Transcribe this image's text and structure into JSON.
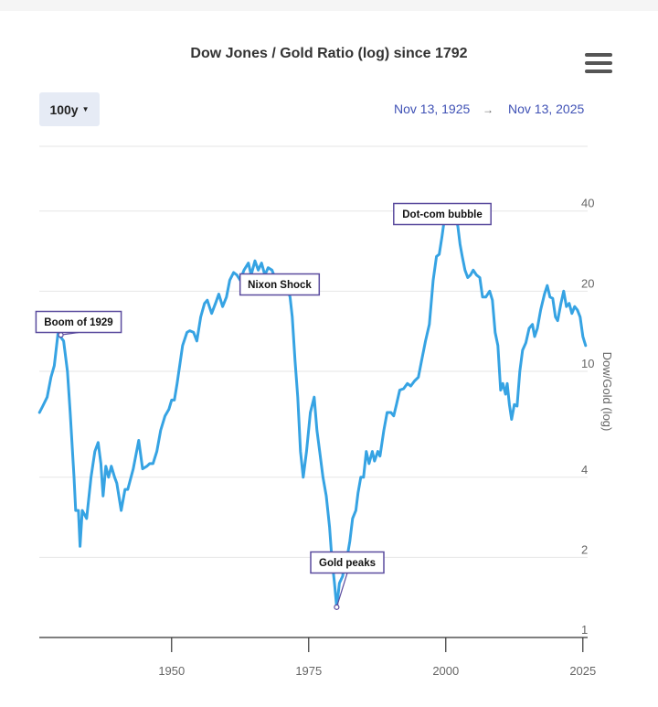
{
  "chart_data": {
    "type": "line",
    "title": "Dow Jones / Gold Ratio (log) since 1792",
    "ylabel": "Dow/Gold (log)",
    "xlabel": "",
    "yscale": "log",
    "ylim": [
      1,
      70
    ],
    "xlim": [
      1925.87,
      2025.87
    ],
    "x_ticks": [
      "1950",
      "1975",
      "2000",
      "2025"
    ],
    "y_ticks": [
      "1",
      "2",
      "4",
      "10",
      "20",
      "40"
    ],
    "grid": true,
    "legend": "none",
    "series": [
      {
        "color": "#36a3e3",
        "points": [
          [
            1925.9,
            7.0
          ],
          [
            1926.5,
            7.4
          ],
          [
            1927.3,
            8.0
          ],
          [
            1928.0,
            9.5
          ],
          [
            1928.6,
            10.5
          ],
          [
            1929.3,
            14.0
          ],
          [
            1929.7,
            13.5
          ],
          [
            1930.3,
            13.0
          ],
          [
            1931.0,
            10.0
          ],
          [
            1931.5,
            7.0
          ],
          [
            1932.2,
            4.0
          ],
          [
            1932.5,
            3.0
          ],
          [
            1933.0,
            3.0
          ],
          [
            1933.3,
            2.2
          ],
          [
            1933.7,
            3.0
          ],
          [
            1934.5,
            2.8
          ],
          [
            1935.3,
            4.0
          ],
          [
            1936.0,
            5.0
          ],
          [
            1936.6,
            5.4
          ],
          [
            1937.1,
            4.5
          ],
          [
            1937.5,
            3.4
          ],
          [
            1938.0,
            4.4
          ],
          [
            1938.5,
            4.0
          ],
          [
            1939.0,
            4.4
          ],
          [
            1939.6,
            4.0
          ],
          [
            1940.0,
            3.8
          ],
          [
            1940.8,
            3.0
          ],
          [
            1941.5,
            3.6
          ],
          [
            1942.0,
            3.6
          ],
          [
            1943.0,
            4.3
          ],
          [
            1944.0,
            5.5
          ],
          [
            1944.7,
            4.3
          ],
          [
            1945.5,
            4.4
          ],
          [
            1946.0,
            4.5
          ],
          [
            1946.6,
            4.5
          ],
          [
            1947.3,
            5.0
          ],
          [
            1948.0,
            6.0
          ],
          [
            1948.8,
            6.8
          ],
          [
            1949.5,
            7.2
          ],
          [
            1950.0,
            7.8
          ],
          [
            1950.5,
            7.8
          ],
          [
            1951.0,
            9.0
          ],
          [
            1952.0,
            12.5
          ],
          [
            1952.8,
            14.0
          ],
          [
            1953.3,
            14.2
          ],
          [
            1954.0,
            14.0
          ],
          [
            1954.6,
            13.0
          ],
          [
            1955.3,
            16.0
          ],
          [
            1956.0,
            18.0
          ],
          [
            1956.5,
            18.5
          ],
          [
            1957.3,
            16.5
          ],
          [
            1958.0,
            18.0
          ],
          [
            1958.6,
            19.5
          ],
          [
            1959.3,
            17.5
          ],
          [
            1960.0,
            19.0
          ],
          [
            1960.6,
            22.0
          ],
          [
            1961.3,
            23.5
          ],
          [
            1961.9,
            23.0
          ],
          [
            1962.5,
            22.0
          ],
          [
            1963.2,
            24.0
          ],
          [
            1964.0,
            25.5
          ],
          [
            1964.5,
            23.0
          ],
          [
            1965.2,
            26.0
          ],
          [
            1965.8,
            24.0
          ],
          [
            1966.4,
            25.5
          ],
          [
            1967.0,
            23.0
          ],
          [
            1967.6,
            24.5
          ],
          [
            1968.3,
            24.0
          ],
          [
            1969.0,
            22.0
          ],
          [
            1970.0,
            21.0
          ],
          [
            1970.5,
            20.0
          ],
          [
            1971.0,
            21.0
          ],
          [
            1971.6,
            19.0
          ],
          [
            1972.0,
            16.0
          ],
          [
            1972.5,
            11.0
          ],
          [
            1973.0,
            8.0
          ],
          [
            1973.5,
            5.0
          ],
          [
            1974.0,
            4.0
          ],
          [
            1974.6,
            5.0
          ],
          [
            1975.3,
            7.0
          ],
          [
            1976.0,
            8.0
          ],
          [
            1976.5,
            6.0
          ],
          [
            1977.0,
            5.0
          ],
          [
            1977.6,
            4.0
          ],
          [
            1978.2,
            3.4
          ],
          [
            1978.8,
            2.6
          ],
          [
            1979.2,
            2.0
          ],
          [
            1979.7,
            1.6
          ],
          [
            1980.1,
            1.3
          ],
          [
            1980.6,
            1.6
          ],
          [
            1981.2,
            1.7
          ],
          [
            1981.6,
            2.0
          ],
          [
            1982.0,
            2.0
          ],
          [
            1982.5,
            2.3
          ],
          [
            1983.0,
            2.8
          ],
          [
            1983.6,
            3.0
          ],
          [
            1984.0,
            3.5
          ],
          [
            1984.5,
            4.0
          ],
          [
            1985.0,
            4.0
          ],
          [
            1985.5,
            5.0
          ],
          [
            1986.0,
            4.5
          ],
          [
            1986.6,
            5.0
          ],
          [
            1987.0,
            4.6
          ],
          [
            1987.6,
            5.0
          ],
          [
            1988.0,
            4.8
          ],
          [
            1988.7,
            6.0
          ],
          [
            1989.3,
            7.0
          ],
          [
            1990.0,
            7.0
          ],
          [
            1990.5,
            6.8
          ],
          [
            1991.0,
            7.5
          ],
          [
            1991.6,
            8.5
          ],
          [
            1992.3,
            8.6
          ],
          [
            1993.0,
            9.0
          ],
          [
            1993.6,
            8.8
          ],
          [
            1994.3,
            9.2
          ],
          [
            1995.0,
            9.5
          ],
          [
            1995.6,
            11.0
          ],
          [
            1996.3,
            13.0
          ],
          [
            1997.0,
            15.0
          ],
          [
            1997.7,
            22.0
          ],
          [
            1998.3,
            27.0
          ],
          [
            1998.8,
            27.5
          ],
          [
            1999.3,
            32.0
          ],
          [
            1999.8,
            38.0
          ],
          [
            2000.5,
            37.5
          ],
          [
            2001.0,
            40.0
          ],
          [
            2001.6,
            40.5
          ],
          [
            2002.2,
            35.0
          ],
          [
            2002.6,
            30.0
          ],
          [
            2003.0,
            27.0
          ],
          [
            2003.5,
            24.0
          ],
          [
            2004.0,
            22.5
          ],
          [
            2004.5,
            23.0
          ],
          [
            2005.0,
            24.0
          ],
          [
            2005.6,
            23.0
          ],
          [
            2006.2,
            22.5
          ],
          [
            2006.7,
            19.0
          ],
          [
            2007.3,
            19.0
          ],
          [
            2008.0,
            20.0
          ],
          [
            2008.5,
            18.5
          ],
          [
            2009.0,
            14.0
          ],
          [
            2009.5,
            12.5
          ],
          [
            2010.0,
            8.5
          ],
          [
            2010.4,
            9.0
          ],
          [
            2010.9,
            8.2
          ],
          [
            2011.2,
            9.0
          ],
          [
            2011.6,
            7.5
          ],
          [
            2012.0,
            6.6
          ],
          [
            2012.5,
            7.5
          ],
          [
            2013.0,
            7.4
          ],
          [
            2013.5,
            10.0
          ],
          [
            2014.0,
            12.0
          ],
          [
            2014.6,
            12.8
          ],
          [
            2015.2,
            14.5
          ],
          [
            2015.8,
            15.0
          ],
          [
            2016.2,
            13.5
          ],
          [
            2016.7,
            14.5
          ],
          [
            2017.3,
            17.0
          ],
          [
            2018.0,
            19.5
          ],
          [
            2018.5,
            21.0
          ],
          [
            2019.0,
            19.0
          ],
          [
            2019.5,
            18.8
          ],
          [
            2020.0,
            16.0
          ],
          [
            2020.4,
            15.5
          ],
          [
            2021.0,
            18.0
          ],
          [
            2021.5,
            20.0
          ],
          [
            2022.0,
            17.5
          ],
          [
            2022.5,
            18.0
          ],
          [
            2023.0,
            16.5
          ],
          [
            2023.5,
            17.5
          ],
          [
            2024.0,
            17.0
          ],
          [
            2024.5,
            16.0
          ],
          [
            2025.0,
            13.5
          ],
          [
            2025.5,
            12.5
          ]
        ]
      }
    ],
    "annotations": [
      {
        "text": "Boom of 1929",
        "x": 1929.8,
        "y": 13.7
      },
      {
        "text": "Nixon Shock",
        "x": 1971.5,
        "y": 19.8
      },
      {
        "text": "Gold peaks",
        "x": 1980.1,
        "y": 1.3
      },
      {
        "text": "Dot-com bubble",
        "x": 1999.7,
        "y": 38.3
      }
    ]
  },
  "controls": {
    "range_label": "100y",
    "from_date": "Nov 13, 1925",
    "arrow": "→",
    "to_date": "Nov 13, 2025"
  },
  "colors": {
    "line": "#36a3e3",
    "annotation_border": "#5a4b9e",
    "accent_text": "#3f51b5",
    "grid": "#e6e6e6"
  },
  "icons": {
    "menu": "hamburger-menu-icon"
  }
}
